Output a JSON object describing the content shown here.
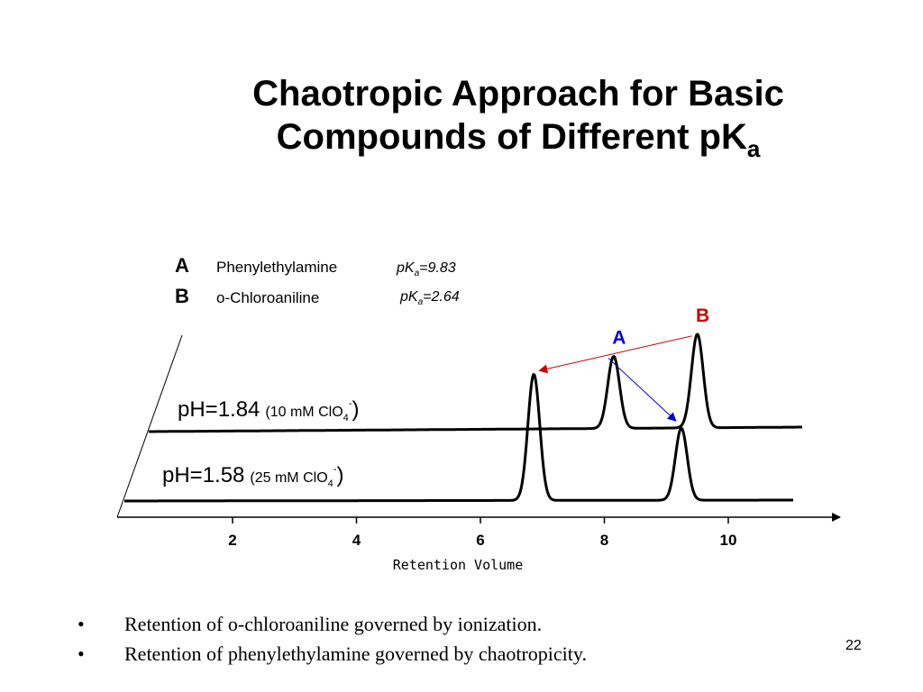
{
  "slide": {
    "title_line1": "Chaotropic Approach for Basic",
    "title_line2": "Compounds of Different pK",
    "title_sub": "a",
    "bullets": [
      "Retention of o-chloroaniline governed by ionization.",
      "Retention of phenylethylamine governed by chaotropicity."
    ],
    "bullet_symbol": "•",
    "page_number": "22"
  },
  "chart_data": {
    "type": "line",
    "xlabel": "Retention Volume",
    "ylabel": "",
    "x_ticks": [
      2,
      4,
      6,
      8,
      10
    ],
    "xlim": [
      0.8,
      11.8
    ],
    "legend": [
      {
        "letter": "A",
        "compound": "Phenylethylamine",
        "pka_prefix": "pK",
        "pka_sub": "a",
        "pka_value": "=9.83",
        "color": "#0000cc"
      },
      {
        "letter": "B",
        "compound": "o-Chloroaniline",
        "pka_prefix": "pK",
        "pka_sub": "a",
        "pka_value": "=2.64",
        "color": "#cc0000"
      }
    ],
    "series": [
      {
        "label_main": "pH=1.84",
        "label_paren": "(10 mM ClO",
        "label_sub": "4",
        "label_sup": "-",
        "label_close": ")",
        "peaks": [
          {
            "compound": "A",
            "x": 8.15,
            "height": 1.0
          },
          {
            "compound": "B",
            "x": 9.5,
            "height": 1.3
          }
        ]
      },
      {
        "label_main": "pH=1.58",
        "label_paren": "(25 mM ClO",
        "label_sub": "4",
        "label_sup": "-",
        "label_close": ")",
        "peaks": [
          {
            "compound": "B",
            "x": 6.6,
            "height": 1.75
          },
          {
            "compound": "A",
            "x": 8.98,
            "height": 1.0
          }
        ]
      }
    ],
    "annotations": [
      {
        "text": "B",
        "color": "#cc0000",
        "arrow_from": {
          "series": 0,
          "x": 9.5
        },
        "arrow_to": {
          "series": 1,
          "x": 6.6
        }
      },
      {
        "text": "A",
        "color": "#0000cc",
        "arrow_from": {
          "series": 0,
          "x": 8.15
        },
        "arrow_to": {
          "series": 1,
          "x": 8.98
        }
      }
    ]
  }
}
